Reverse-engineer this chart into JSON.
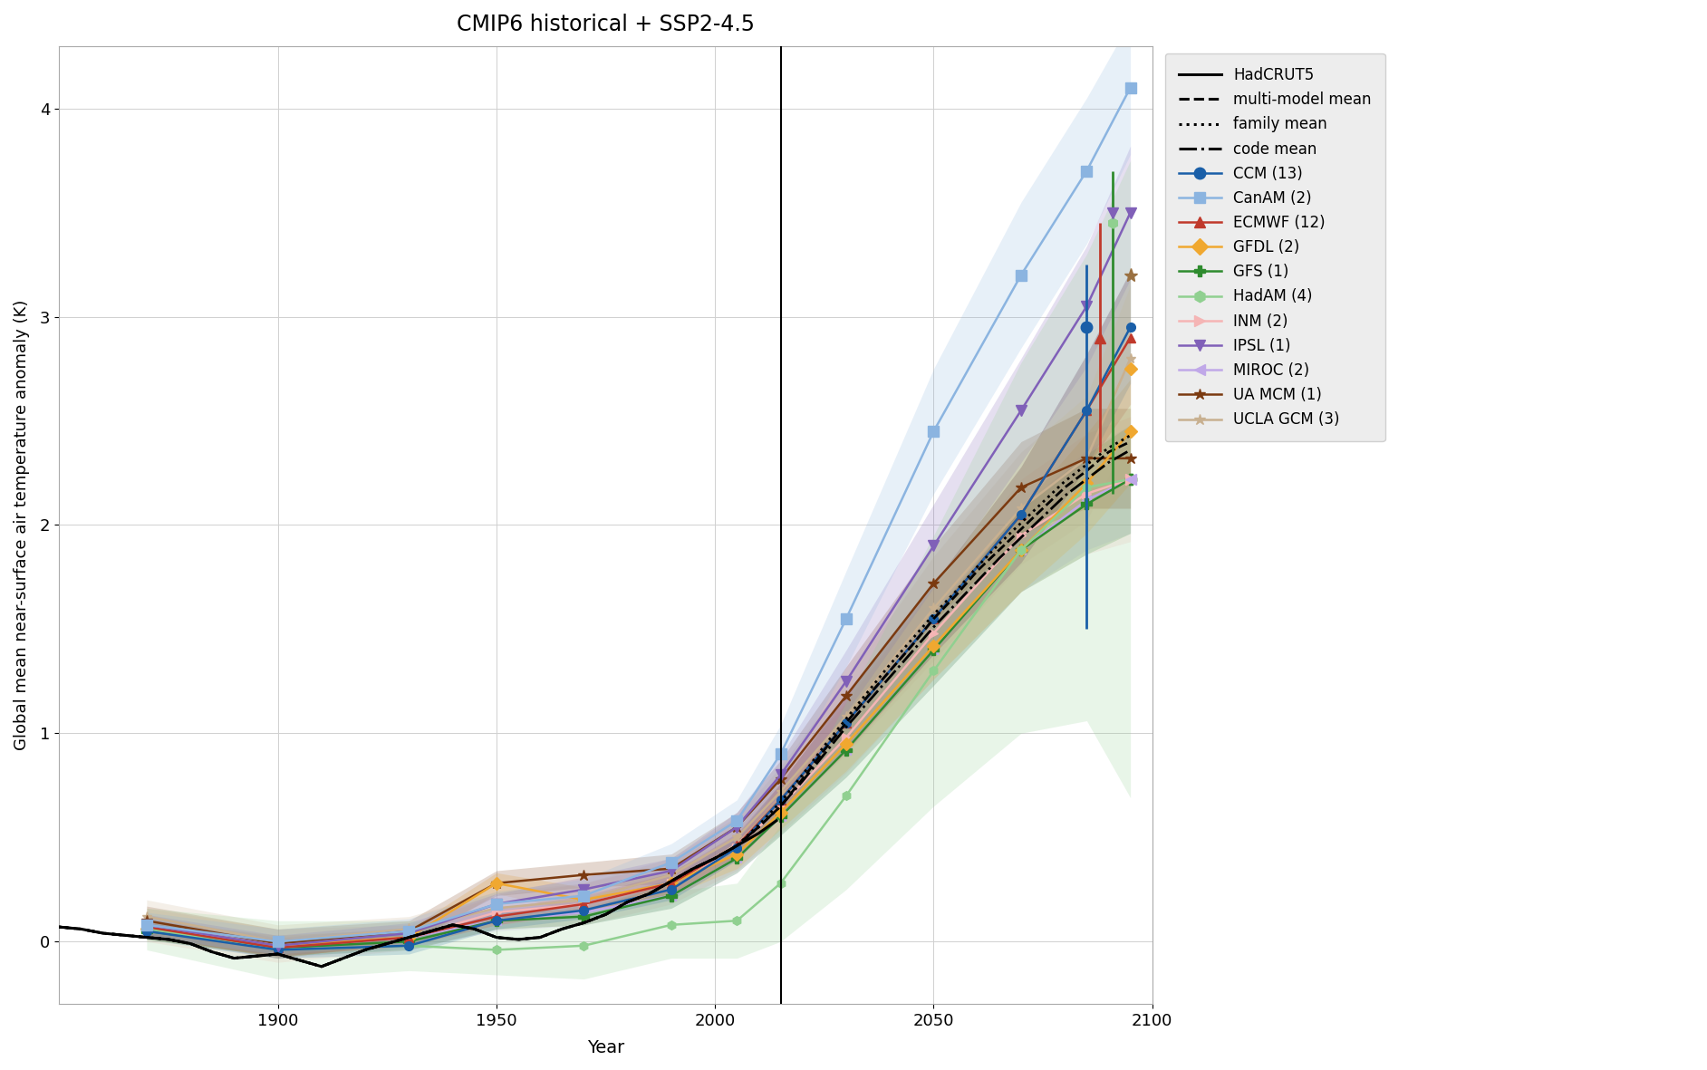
{
  "title": "CMIP6 historical + SSP2-4.5",
  "xlabel": "Year",
  "ylabel": "Global mean near-surface air temperature anomaly (K)",
  "xlim": [
    1850,
    2100
  ],
  "ylim": [
    -0.3,
    4.3
  ],
  "vline_x": 2015,
  "series": {
    "HadCRUT5": {
      "color": "#000000",
      "linestyle": "solid",
      "linewidth": 2.2,
      "marker": null,
      "x": [
        1850,
        1855,
        1860,
        1865,
        1870,
        1875,
        1880,
        1885,
        1890,
        1895,
        1900,
        1905,
        1910,
        1915,
        1920,
        1925,
        1930,
        1935,
        1940,
        1945,
        1950,
        1955,
        1960,
        1965,
        1970,
        1975,
        1980,
        1985,
        1990,
        1995,
        2000,
        2005,
        2010,
        2014
      ],
      "y": [
        0.07,
        0.06,
        0.04,
        0.03,
        0.02,
        0.01,
        -0.01,
        -0.05,
        -0.08,
        -0.07,
        -0.06,
        -0.09,
        -0.12,
        -0.08,
        -0.04,
        -0.01,
        0.02,
        0.05,
        0.08,
        0.06,
        0.02,
        0.01,
        0.02,
        0.06,
        0.09,
        0.13,
        0.19,
        0.23,
        0.29,
        0.35,
        0.4,
        0.46,
        0.52,
        0.58
      ]
    },
    "multi_model_mean": {
      "color": "#000000",
      "linestyle": "dashed",
      "linewidth": 2.0,
      "marker": null,
      "x": [
        1850,
        1855,
        1860,
        1865,
        1870,
        1875,
        1880,
        1885,
        1890,
        1895,
        1900,
        1905,
        1910,
        1915,
        1920,
        1925,
        1930,
        1935,
        1940,
        1945,
        1950,
        1955,
        1960,
        1965,
        1970,
        1975,
        1980,
        1985,
        1990,
        1995,
        2000,
        2005,
        2010,
        2015,
        2020,
        2025,
        2030,
        2035,
        2040,
        2045,
        2050,
        2055,
        2060,
        2065,
        2070,
        2075,
        2080,
        2085,
        2090,
        2095
      ],
      "y": [
        0.07,
        0.06,
        0.04,
        0.03,
        0.02,
        0.01,
        -0.01,
        -0.05,
        -0.08,
        -0.07,
        -0.06,
        -0.09,
        -0.12,
        -0.08,
        -0.04,
        -0.01,
        0.02,
        0.05,
        0.08,
        0.06,
        0.02,
        0.01,
        0.02,
        0.06,
        0.09,
        0.13,
        0.19,
        0.23,
        0.29,
        0.35,
        0.4,
        0.46,
        0.55,
        0.65,
        0.78,
        0.92,
        1.05,
        1.18,
        1.3,
        1.42,
        1.55,
        1.66,
        1.78,
        1.88,
        1.98,
        2.08,
        2.18,
        2.26,
        2.35,
        2.4
      ]
    },
    "family_mean": {
      "color": "#000000",
      "linestyle": "dotted",
      "linewidth": 2.0,
      "marker": null,
      "x": [
        1850,
        1855,
        1860,
        1865,
        1870,
        1875,
        1880,
        1885,
        1890,
        1895,
        1900,
        1905,
        1910,
        1915,
        1920,
        1925,
        1930,
        1935,
        1940,
        1945,
        1950,
        1955,
        1960,
        1965,
        1970,
        1975,
        1980,
        1985,
        1990,
        1995,
        2000,
        2005,
        2010,
        2015,
        2020,
        2025,
        2030,
        2035,
        2040,
        2045,
        2050,
        2055,
        2060,
        2065,
        2070,
        2075,
        2080,
        2085,
        2090,
        2095
      ],
      "y": [
        0.07,
        0.06,
        0.04,
        0.03,
        0.02,
        0.01,
        -0.01,
        -0.05,
        -0.08,
        -0.07,
        -0.06,
        -0.09,
        -0.12,
        -0.08,
        -0.04,
        -0.01,
        0.02,
        0.05,
        0.08,
        0.06,
        0.02,
        0.01,
        0.02,
        0.06,
        0.09,
        0.13,
        0.19,
        0.23,
        0.29,
        0.35,
        0.4,
        0.46,
        0.56,
        0.67,
        0.8,
        0.94,
        1.07,
        1.2,
        1.33,
        1.45,
        1.57,
        1.68,
        1.8,
        1.91,
        2.01,
        2.11,
        2.21,
        2.29,
        2.37,
        2.43
      ]
    },
    "code_mean": {
      "color": "#000000",
      "linestyle": "dashdot",
      "linewidth": 2.0,
      "marker": null,
      "x": [
        1850,
        1855,
        1860,
        1865,
        1870,
        1875,
        1880,
        1885,
        1890,
        1895,
        1900,
        1905,
        1910,
        1915,
        1920,
        1925,
        1930,
        1935,
        1940,
        1945,
        1950,
        1955,
        1960,
        1965,
        1970,
        1975,
        1980,
        1985,
        1990,
        1995,
        2000,
        2005,
        2010,
        2015,
        2020,
        2025,
        2030,
        2035,
        2040,
        2045,
        2050,
        2055,
        2060,
        2065,
        2070,
        2075,
        2080,
        2085,
        2090,
        2095
      ],
      "y": [
        0.07,
        0.06,
        0.04,
        0.03,
        0.02,
        0.01,
        -0.01,
        -0.05,
        -0.08,
        -0.07,
        -0.06,
        -0.09,
        -0.12,
        -0.08,
        -0.04,
        -0.01,
        0.02,
        0.05,
        0.08,
        0.06,
        0.02,
        0.01,
        0.02,
        0.06,
        0.09,
        0.13,
        0.19,
        0.23,
        0.29,
        0.35,
        0.4,
        0.46,
        0.55,
        0.65,
        0.77,
        0.9,
        1.03,
        1.15,
        1.27,
        1.39,
        1.51,
        1.62,
        1.73,
        1.84,
        1.94,
        2.04,
        2.14,
        2.22,
        2.3,
        2.36
      ]
    },
    "CCM": {
      "color": "#1a5fa8",
      "linestyle": "solid",
      "linewidth": 1.8,
      "marker": "o",
      "markersize": 7,
      "x": [
        1870,
        1900,
        1930,
        1950,
        1970,
        1990,
        2005,
        2015,
        2030,
        2050,
        2070,
        2085,
        2095
      ],
      "y": [
        0.05,
        -0.04,
        -0.02,
        0.1,
        0.15,
        0.25,
        0.45,
        0.68,
        1.05,
        1.55,
        2.05,
        2.55,
        2.95
      ],
      "shade_upper": [
        0.09,
        0.0,
        0.02,
        0.14,
        0.19,
        0.3,
        0.51,
        0.76,
        1.18,
        1.72,
        2.28,
        2.82,
        3.22
      ],
      "shade_lower": [
        0.01,
        -0.08,
        -0.06,
        0.06,
        0.11,
        0.2,
        0.39,
        0.6,
        0.92,
        1.38,
        1.82,
        2.28,
        2.68
      ]
    },
    "CanAM": {
      "color": "#8bb4e0",
      "linestyle": "solid",
      "linewidth": 1.8,
      "marker": "s",
      "markersize": 8,
      "x": [
        1870,
        1900,
        1930,
        1950,
        1970,
        1990,
        2005,
        2015,
        2030,
        2050,
        2070,
        2085,
        2095
      ],
      "y": [
        0.08,
        0.0,
        0.05,
        0.18,
        0.22,
        0.38,
        0.58,
        0.9,
        1.55,
        2.45,
        3.2,
        3.7,
        4.1
      ],
      "shade_upper": [
        0.14,
        0.06,
        0.11,
        0.24,
        0.3,
        0.47,
        0.68,
        1.04,
        1.78,
        2.75,
        3.55,
        4.05,
        4.42
      ],
      "shade_lower": [
        0.02,
        -0.06,
        -0.01,
        0.12,
        0.14,
        0.29,
        0.48,
        0.76,
        1.32,
        2.15,
        2.85,
        3.35,
        3.78
      ]
    },
    "ECMWF": {
      "color": "#c0392b",
      "linestyle": "solid",
      "linewidth": 1.8,
      "marker": "^",
      "markersize": 7,
      "x": [
        1870,
        1900,
        1930,
        1950,
        1970,
        1990,
        2005,
        2015,
        2030,
        2050,
        2070,
        2085,
        2095
      ],
      "y": [
        0.07,
        -0.03,
        0.02,
        0.12,
        0.18,
        0.28,
        0.46,
        0.68,
        1.05,
        1.55,
        2.05,
        2.55,
        2.9
      ],
      "shade_upper": [
        0.11,
        0.01,
        0.06,
        0.16,
        0.22,
        0.33,
        0.52,
        0.76,
        1.19,
        1.72,
        2.28,
        2.82,
        3.22
      ],
      "shade_lower": [
        0.02,
        -0.07,
        -0.02,
        0.08,
        0.14,
        0.23,
        0.4,
        0.6,
        0.91,
        1.38,
        1.82,
        2.28,
        2.58
      ]
    },
    "GFDL": {
      "color": "#f0a830",
      "linestyle": "solid",
      "linewidth": 1.8,
      "marker": "D",
      "markersize": 7,
      "x": [
        1870,
        1900,
        1930,
        1950,
        1970,
        1990,
        2005,
        2015,
        2030,
        2050,
        2070,
        2085,
        2095
      ],
      "y": [
        0.06,
        -0.02,
        0.02,
        0.28,
        0.2,
        0.28,
        0.42,
        0.62,
        0.95,
        1.42,
        1.88,
        2.2,
        2.45
      ],
      "shade_upper": [
        0.1,
        0.03,
        0.06,
        0.33,
        0.26,
        0.34,
        0.49,
        0.7,
        1.08,
        1.58,
        2.08,
        2.44,
        2.7
      ],
      "shade_lower": [
        0.01,
        -0.07,
        -0.02,
        0.23,
        0.14,
        0.22,
        0.35,
        0.54,
        0.82,
        1.26,
        1.68,
        1.96,
        2.2
      ]
    },
    "GFS": {
      "color": "#2e8b2e",
      "linestyle": "solid",
      "linewidth": 1.8,
      "marker": "P",
      "markersize": 8,
      "x": [
        1870,
        1900,
        1930,
        1950,
        1970,
        1990,
        2005,
        2015,
        2030,
        2050,
        2070,
        2085,
        2095
      ],
      "y": [
        0.05,
        -0.03,
        0.0,
        0.1,
        0.12,
        0.22,
        0.4,
        0.6,
        0.92,
        1.4,
        1.88,
        2.1,
        2.22
      ],
      "shade_upper": [
        0.09,
        0.01,
        0.04,
        0.14,
        0.16,
        0.28,
        0.47,
        0.69,
        1.05,
        1.57,
        2.08,
        2.34,
        2.48
      ],
      "shade_lower": [
        0.01,
        -0.07,
        -0.04,
        0.06,
        0.08,
        0.16,
        0.33,
        0.51,
        0.79,
        1.23,
        1.68,
        1.86,
        1.96
      ]
    },
    "HadAM": {
      "color": "#90d090",
      "linestyle": "solid",
      "linewidth": 1.8,
      "marker": "h",
      "markersize": 7,
      "x": [
        1870,
        1900,
        1930,
        1950,
        1970,
        1990,
        2005,
        2015,
        2030,
        2050,
        2070,
        2085,
        2095
      ],
      "y": [
        0.06,
        -0.04,
        -0.02,
        -0.04,
        -0.02,
        0.08,
        0.1,
        0.28,
        0.7,
        1.3,
        1.88,
        2.18,
        2.22
      ],
      "shade_upper": [
        0.16,
        0.1,
        0.1,
        0.08,
        0.14,
        0.24,
        0.28,
        0.56,
        1.15,
        1.95,
        2.78,
        3.3,
        3.75
      ],
      "shade_lower": [
        -0.04,
        -0.18,
        -0.14,
        -0.16,
        -0.18,
        -0.08,
        -0.08,
        0.0,
        0.25,
        0.65,
        1.0,
        1.06,
        0.69
      ]
    },
    "INM": {
      "color": "#f5b5b5",
      "linestyle": "solid",
      "linewidth": 1.8,
      "marker": ">",
      "markersize": 7,
      "x": [
        1870,
        1900,
        1930,
        1950,
        1970,
        1990,
        2005,
        2015,
        2030,
        2050,
        2070,
        2085,
        2095
      ],
      "y": [
        0.08,
        -0.02,
        0.02,
        0.14,
        0.18,
        0.28,
        0.45,
        0.65,
        0.98,
        1.48,
        1.95,
        2.15,
        2.22
      ],
      "shade_upper": [
        0.16,
        0.06,
        0.08,
        0.22,
        0.28,
        0.38,
        0.56,
        0.78,
        1.15,
        1.7,
        2.22,
        2.44,
        2.52
      ],
      "shade_lower": [
        0.0,
        -0.1,
        -0.04,
        0.06,
        0.08,
        0.18,
        0.34,
        0.52,
        0.81,
        1.26,
        1.68,
        1.86,
        1.92
      ]
    },
    "IPSL": {
      "color": "#8060b8",
      "linestyle": "solid",
      "linewidth": 1.8,
      "marker": "v",
      "markersize": 8,
      "x": [
        1870,
        1900,
        1930,
        1950,
        1970,
        1990,
        2005,
        2015,
        2030,
        2050,
        2070,
        2085,
        2095
      ],
      "y": [
        0.08,
        -0.02,
        0.04,
        0.18,
        0.25,
        0.34,
        0.55,
        0.8,
        1.25,
        1.9,
        2.55,
        3.05,
        3.5
      ],
      "shade_upper": [
        0.13,
        0.03,
        0.09,
        0.23,
        0.31,
        0.4,
        0.62,
        0.89,
        1.4,
        2.1,
        2.8,
        3.34,
        3.82
      ],
      "shade_lower": [
        0.03,
        -0.07,
        -0.01,
        0.13,
        0.19,
        0.28,
        0.48,
        0.71,
        1.1,
        1.7,
        2.3,
        2.76,
        3.18
      ]
    },
    "MIROC": {
      "color": "#c0a8e8",
      "linestyle": "solid",
      "linewidth": 1.8,
      "marker": "<",
      "markersize": 7,
      "x": [
        1870,
        1900,
        1930,
        1950,
        1970,
        1990,
        2005,
        2015,
        2030,
        2050,
        2070,
        2085,
        2095
      ],
      "y": [
        0.07,
        -0.03,
        0.02,
        0.1,
        0.14,
        0.22,
        0.4,
        0.6,
        0.92,
        1.4,
        1.88,
        2.12,
        2.22
      ],
      "shade_upper": [
        0.12,
        0.02,
        0.07,
        0.15,
        0.2,
        0.28,
        0.47,
        0.69,
        1.05,
        1.57,
        2.08,
        2.36,
        2.48
      ],
      "shade_lower": [
        0.02,
        -0.08,
        -0.03,
        0.05,
        0.08,
        0.16,
        0.33,
        0.51,
        0.79,
        1.23,
        1.68,
        1.88,
        1.96
      ]
    },
    "UA_MCM": {
      "color": "#7b3a10",
      "linestyle": "solid",
      "linewidth": 1.8,
      "marker": "*",
      "markersize": 9,
      "x": [
        1870,
        1900,
        1930,
        1950,
        1970,
        1990,
        2005,
        2015,
        2030,
        2050,
        2070,
        2085,
        2095
      ],
      "y": [
        0.1,
        -0.01,
        0.05,
        0.28,
        0.32,
        0.35,
        0.55,
        0.78,
        1.18,
        1.72,
        2.18,
        2.32,
        2.32
      ],
      "shade_upper": [
        0.17,
        0.06,
        0.1,
        0.34,
        0.38,
        0.42,
        0.62,
        0.87,
        1.32,
        1.9,
        2.4,
        2.56,
        2.56
      ],
      "shade_lower": [
        0.03,
        -0.08,
        0.0,
        0.22,
        0.26,
        0.28,
        0.48,
        0.69,
        1.04,
        1.54,
        1.96,
        2.08,
        2.08
      ]
    },
    "UCLA_GCM": {
      "color": "#c8b090",
      "linestyle": "solid",
      "linewidth": 1.8,
      "marker": "*",
      "markersize": 8,
      "x": [
        1870,
        1900,
        1930,
        1950,
        1970,
        1990,
        2005,
        2015,
        2030,
        2050,
        2070,
        2085,
        2095
      ],
      "y": [
        0.12,
        0.0,
        0.06,
        0.16,
        0.2,
        0.32,
        0.5,
        0.72,
        1.08,
        1.6,
        2.08,
        2.32,
        2.8
      ],
      "shade_upper": [
        0.2,
        0.08,
        0.12,
        0.24,
        0.28,
        0.4,
        0.6,
        0.84,
        1.26,
        1.85,
        2.35,
        2.62,
        3.15
      ],
      "shade_lower": [
        0.04,
        -0.08,
        0.0,
        0.08,
        0.12,
        0.24,
        0.4,
        0.6,
        0.9,
        1.35,
        1.81,
        2.02,
        2.45
      ]
    }
  },
  "legend_entries": [
    {
      "label": "HadCRUT5",
      "color": "#000000",
      "linestyle": "solid",
      "marker": null
    },
    {
      "label": "multi-model mean",
      "color": "#000000",
      "linestyle": "dashed",
      "marker": null
    },
    {
      "label": "family mean",
      "color": "#000000",
      "linestyle": "dotted",
      "marker": null
    },
    {
      "label": "code mean",
      "color": "#000000",
      "linestyle": "dashdot",
      "marker": null
    },
    {
      "label": "CCM (13)",
      "color": "#1a5fa8",
      "linestyle": "solid",
      "marker": "o"
    },
    {
      "label": "CanAM (2)",
      "color": "#8bb4e0",
      "linestyle": "solid",
      "marker": "s"
    },
    {
      "label": "ECMWF (12)",
      "color": "#c0392b",
      "linestyle": "solid",
      "marker": "^"
    },
    {
      "label": "GFDL (2)",
      "color": "#f0a830",
      "linestyle": "solid",
      "marker": "D"
    },
    {
      "label": "GFS (1)",
      "color": "#2e8b2e",
      "linestyle": "solid",
      "marker": "P"
    },
    {
      "label": "HadAM (4)",
      "color": "#90d090",
      "linestyle": "solid",
      "marker": "h"
    },
    {
      "label": "INM (2)",
      "color": "#f5b5b5",
      "linestyle": "solid",
      "marker": ">"
    },
    {
      "label": "IPSL (1)",
      "color": "#8060b8",
      "linestyle": "solid",
      "marker": "v"
    },
    {
      "label": "MIROC (2)",
      "color": "#c0a8e8",
      "linestyle": "solid",
      "marker": "<"
    },
    {
      "label": "UA MCM (1)",
      "color": "#7b3a10",
      "linestyle": "solid",
      "marker": "*"
    },
    {
      "label": "UCLA GCM (3)",
      "color": "#c8b090",
      "linestyle": "solid",
      "marker": "*"
    }
  ]
}
